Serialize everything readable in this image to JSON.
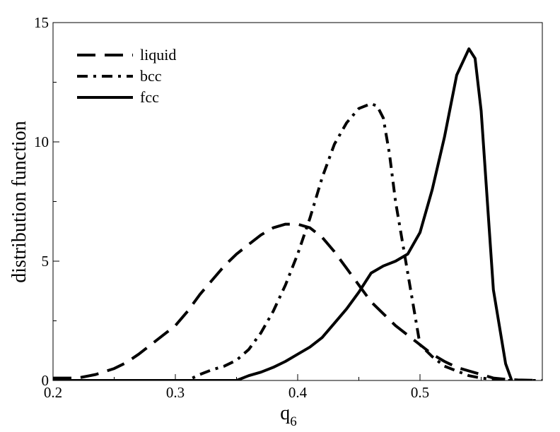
{
  "chart_data": {
    "type": "line",
    "title": "",
    "xlabel": "q",
    "xlabel_sub": "6",
    "ylabel": "distribution function",
    "xlim": [
      0.2,
      0.6
    ],
    "ylim": [
      0,
      15
    ],
    "xticks": [
      0.2,
      0.3,
      0.4,
      0.5
    ],
    "xtick_labels": [
      "0.2",
      "0.3",
      "0.4",
      "0.5"
    ],
    "yticks": [
      0,
      5,
      10,
      15
    ],
    "ytick_labels": [
      "0",
      "5",
      "10",
      "15"
    ],
    "grid": false,
    "legend_position": "top-left",
    "series": [
      {
        "name": "liquid",
        "style": "dashed",
        "color": "#000000",
        "x": [
          0.2,
          0.22,
          0.235,
          0.25,
          0.26,
          0.27,
          0.28,
          0.29,
          0.3,
          0.31,
          0.32,
          0.33,
          0.34,
          0.35,
          0.36,
          0.37,
          0.38,
          0.39,
          0.4,
          0.41,
          0.42,
          0.43,
          0.44,
          0.45,
          0.46,
          0.47,
          0.48,
          0.49,
          0.5,
          0.51,
          0.52,
          0.53,
          0.54,
          0.55,
          0.56,
          0.57,
          0.58,
          0.6
        ],
        "y": [
          0.1,
          0.1,
          0.25,
          0.5,
          0.75,
          1.1,
          1.5,
          1.9,
          2.3,
          2.9,
          3.6,
          4.2,
          4.8,
          5.3,
          5.7,
          6.1,
          6.4,
          6.55,
          6.55,
          6.4,
          6.0,
          5.4,
          4.7,
          4.0,
          3.3,
          2.8,
          2.3,
          1.9,
          1.5,
          1.1,
          0.8,
          0.55,
          0.4,
          0.25,
          0.1,
          0.05,
          0.02,
          0.0
        ]
      },
      {
        "name": "bcc",
        "style": "dash-dot",
        "color": "#000000",
        "x": [
          0.2,
          0.31,
          0.32,
          0.33,
          0.34,
          0.35,
          0.36,
          0.37,
          0.38,
          0.39,
          0.4,
          0.41,
          0.42,
          0.43,
          0.44,
          0.45,
          0.46,
          0.465,
          0.47,
          0.475,
          0.48,
          0.49,
          0.5,
          0.51,
          0.52,
          0.53,
          0.54,
          0.55,
          0.56,
          0.57,
          0.6
        ],
        "y": [
          0.0,
          0.0,
          0.25,
          0.45,
          0.6,
          0.85,
          1.3,
          2.0,
          2.9,
          4.0,
          5.3,
          6.8,
          8.5,
          9.9,
          10.8,
          11.4,
          11.6,
          11.5,
          11.0,
          9.5,
          7.5,
          4.5,
          1.5,
          1.0,
          0.6,
          0.4,
          0.2,
          0.1,
          0.05,
          0.0,
          0.0
        ]
      },
      {
        "name": "fcc",
        "style": "solid",
        "color": "#000000",
        "x": [
          0.2,
          0.35,
          0.36,
          0.37,
          0.38,
          0.39,
          0.4,
          0.41,
          0.42,
          0.43,
          0.44,
          0.45,
          0.46,
          0.47,
          0.48,
          0.49,
          0.5,
          0.51,
          0.52,
          0.53,
          0.54,
          0.545,
          0.55,
          0.56,
          0.57,
          0.575
        ],
        "y": [
          0.0,
          0.0,
          0.2,
          0.35,
          0.55,
          0.8,
          1.1,
          1.4,
          1.8,
          2.4,
          3.0,
          3.7,
          4.5,
          4.8,
          5.0,
          5.3,
          6.2,
          8.0,
          10.2,
          12.8,
          13.9,
          13.5,
          11.3,
          3.8,
          0.7,
          0.0
        ]
      }
    ]
  }
}
